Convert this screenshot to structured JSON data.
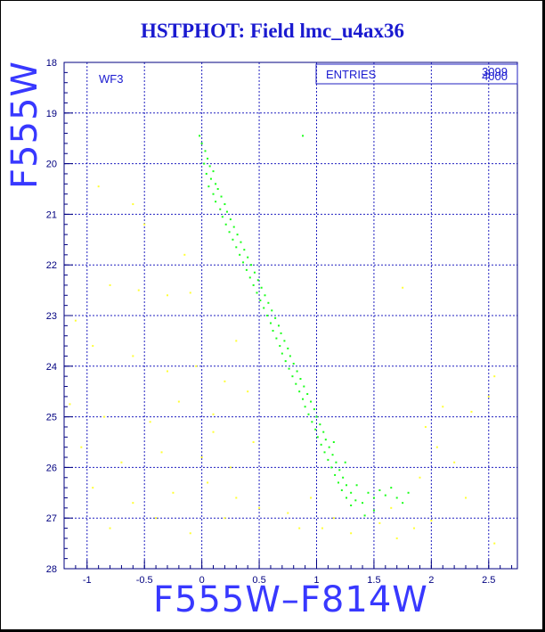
{
  "page": {
    "title": "HSTPHOT: Field lmc_u4ax36"
  },
  "stats_box": {
    "label": "ENTRIES",
    "value_a": "3099",
    "value_b": "4000"
  },
  "colors": {
    "main_sequence": "#1aff1a",
    "field": "#ffff33",
    "axis": "#000080",
    "grid": "#2020c0",
    "title": "#1a1ad0",
    "axis_title": "#3838ff"
  },
  "chart_data": {
    "type": "scatter",
    "panel_label": "WF3",
    "xlabel": "F555W–F814W",
    "ylabel": "F555W",
    "xlim": [
      -1.2,
      2.75
    ],
    "ylim": [
      28,
      18
    ],
    "y_inverted": true,
    "x_ticks": [
      -1,
      -0.5,
      0,
      0.5,
      1,
      1.5,
      2,
      2.5
    ],
    "x_tick_labels": [
      "-1",
      "-0.5",
      "0",
      "0.5",
      "1",
      "1.5",
      "2",
      "2.5"
    ],
    "y_ticks": [
      18,
      19,
      20,
      21,
      22,
      23,
      24,
      25,
      26,
      27,
      28
    ],
    "y_tick_labels": [
      "18",
      "19",
      "20",
      "21",
      "22",
      "23",
      "24",
      "25",
      "26",
      "27",
      "28"
    ],
    "grid": true,
    "series": [
      {
        "color": "#1aff1a",
        "points": [
          [
            -0.02,
            19.45
          ],
          [
            0.0,
            19.6
          ],
          [
            0.03,
            19.75
          ],
          [
            0.05,
            19.9
          ],
          [
            0.02,
            20.0
          ],
          [
            0.07,
            20.05
          ],
          [
            0.04,
            20.2
          ],
          [
            0.1,
            20.15
          ],
          [
            0.08,
            20.3
          ],
          [
            0.12,
            20.4
          ],
          [
            0.06,
            20.45
          ],
          [
            0.14,
            20.5
          ],
          [
            0.1,
            20.6
          ],
          [
            0.17,
            20.65
          ],
          [
            0.12,
            20.75
          ],
          [
            0.2,
            20.8
          ],
          [
            0.16,
            20.9
          ],
          [
            0.22,
            20.95
          ],
          [
            0.18,
            21.05
          ],
          [
            0.25,
            21.1
          ],
          [
            0.21,
            21.2
          ],
          [
            0.28,
            21.25
          ],
          [
            0.24,
            21.35
          ],
          [
            0.31,
            21.4
          ],
          [
            0.27,
            21.5
          ],
          [
            0.34,
            21.55
          ],
          [
            0.3,
            21.65
          ],
          [
            0.37,
            21.7
          ],
          [
            0.33,
            21.8
          ],
          [
            0.4,
            21.85
          ],
          [
            0.36,
            21.95
          ],
          [
            0.43,
            22.0
          ],
          [
            0.39,
            22.1
          ],
          [
            0.46,
            22.15
          ],
          [
            0.42,
            22.25
          ],
          [
            0.49,
            22.3
          ],
          [
            0.45,
            22.4
          ],
          [
            0.52,
            22.45
          ],
          [
            0.48,
            22.55
          ],
          [
            0.55,
            22.6
          ],
          [
            0.51,
            22.7
          ],
          [
            0.58,
            22.75
          ],
          [
            0.54,
            22.85
          ],
          [
            0.61,
            22.9
          ],
          [
            0.57,
            23.0
          ],
          [
            0.64,
            23.05
          ],
          [
            0.6,
            23.15
          ],
          [
            0.67,
            23.2
          ],
          [
            0.62,
            23.3
          ],
          [
            0.69,
            23.35
          ],
          [
            0.65,
            23.45
          ],
          [
            0.72,
            23.5
          ],
          [
            0.68,
            23.6
          ],
          [
            0.75,
            23.65
          ],
          [
            0.7,
            23.75
          ],
          [
            0.77,
            23.8
          ],
          [
            0.73,
            23.9
          ],
          [
            0.8,
            23.95
          ],
          [
            0.76,
            24.05
          ],
          [
            0.83,
            24.1
          ],
          [
            0.79,
            24.2
          ],
          [
            0.86,
            24.25
          ],
          [
            0.82,
            24.35
          ],
          [
            0.89,
            24.4
          ],
          [
            0.85,
            24.5
          ],
          [
            0.92,
            24.55
          ],
          [
            0.88,
            24.65
          ],
          [
            0.95,
            24.7
          ],
          [
            0.9,
            24.8
          ],
          [
            0.98,
            24.85
          ],
          [
            0.93,
            24.95
          ],
          [
            1.0,
            25.0
          ],
          [
            0.96,
            25.1
          ],
          [
            1.03,
            25.15
          ],
          [
            0.99,
            25.25
          ],
          [
            1.06,
            25.3
          ],
          [
            1.01,
            25.4
          ],
          [
            1.08,
            25.45
          ],
          [
            1.04,
            25.55
          ],
          [
            1.11,
            25.6
          ],
          [
            1.07,
            25.7
          ],
          [
            1.14,
            25.75
          ],
          [
            1.1,
            25.85
          ],
          [
            1.17,
            25.9
          ],
          [
            1.13,
            26.0
          ],
          [
            1.2,
            26.05
          ],
          [
            1.16,
            26.15
          ],
          [
            1.23,
            26.2
          ],
          [
            1.19,
            26.3
          ],
          [
            1.26,
            26.35
          ],
          [
            1.22,
            26.45
          ],
          [
            1.3,
            26.5
          ],
          [
            1.26,
            26.6
          ],
          [
            1.34,
            26.65
          ],
          [
            1.3,
            26.75
          ],
          [
            1.4,
            26.7
          ],
          [
            1.45,
            26.5
          ],
          [
            1.5,
            26.6
          ],
          [
            1.55,
            26.45
          ],
          [
            1.6,
            26.55
          ],
          [
            1.65,
            26.4
          ],
          [
            1.7,
            26.6
          ],
          [
            1.75,
            26.7
          ],
          [
            1.8,
            26.5
          ],
          [
            1.5,
            26.85
          ],
          [
            1.42,
            26.95
          ],
          [
            1.35,
            26.35
          ],
          [
            1.25,
            25.9
          ],
          [
            1.15,
            25.5
          ],
          [
            0.88,
            19.45
          ]
        ]
      },
      {
        "color": "#ffff33",
        "points": [
          [
            -0.9,
            20.45
          ],
          [
            -0.6,
            20.8
          ],
          [
            -0.5,
            21.2
          ],
          [
            -0.8,
            22.4
          ],
          [
            -0.55,
            22.5
          ],
          [
            -0.3,
            22.6
          ],
          [
            -0.1,
            22.55
          ],
          [
            -1.1,
            23.1
          ],
          [
            -0.95,
            23.6
          ],
          [
            -0.6,
            23.8
          ],
          [
            -0.3,
            24.1
          ],
          [
            -0.05,
            24.0
          ],
          [
            0.2,
            24.3
          ],
          [
            0.3,
            23.5
          ],
          [
            -1.15,
            24.75
          ],
          [
            -0.85,
            25.0
          ],
          [
            -0.45,
            25.1
          ],
          [
            -0.2,
            24.7
          ],
          [
            0.1,
            25.3
          ],
          [
            0.4,
            24.5
          ],
          [
            -1.05,
            25.6
          ],
          [
            -0.7,
            25.9
          ],
          [
            -0.35,
            25.7
          ],
          [
            0.0,
            25.8
          ],
          [
            0.25,
            26.0
          ],
          [
            0.45,
            25.5
          ],
          [
            -0.95,
            26.4
          ],
          [
            -0.6,
            26.7
          ],
          [
            -0.25,
            26.5
          ],
          [
            0.05,
            26.3
          ],
          [
            0.3,
            26.6
          ],
          [
            -0.8,
            27.2
          ],
          [
            -0.4,
            27.0
          ],
          [
            -0.1,
            27.3
          ],
          [
            0.2,
            27.0
          ],
          [
            0.5,
            26.8
          ],
          [
            0.75,
            26.9
          ],
          [
            0.95,
            26.6
          ],
          [
            1.05,
            27.2
          ],
          [
            1.3,
            27.3
          ],
          [
            1.55,
            27.1
          ],
          [
            1.7,
            27.4
          ],
          [
            1.9,
            26.2
          ],
          [
            2.05,
            25.6
          ],
          [
            2.2,
            25.9
          ],
          [
            2.35,
            24.9
          ],
          [
            2.5,
            24.6
          ],
          [
            2.55,
            24.2
          ],
          [
            2.3,
            26.6
          ],
          [
            2.55,
            27.5
          ],
          [
            1.85,
            27.2
          ],
          [
            1.95,
            25.2
          ],
          [
            2.1,
            24.8
          ],
          [
            1.15,
            27.0
          ],
          [
            0.85,
            27.2
          ],
          [
            1.75,
            22.45
          ],
          [
            1.65,
            26.8
          ],
          [
            2.0,
            27.05
          ],
          [
            -0.15,
            21.8
          ],
          [
            0.1,
            24.95
          ]
        ]
      }
    ]
  }
}
